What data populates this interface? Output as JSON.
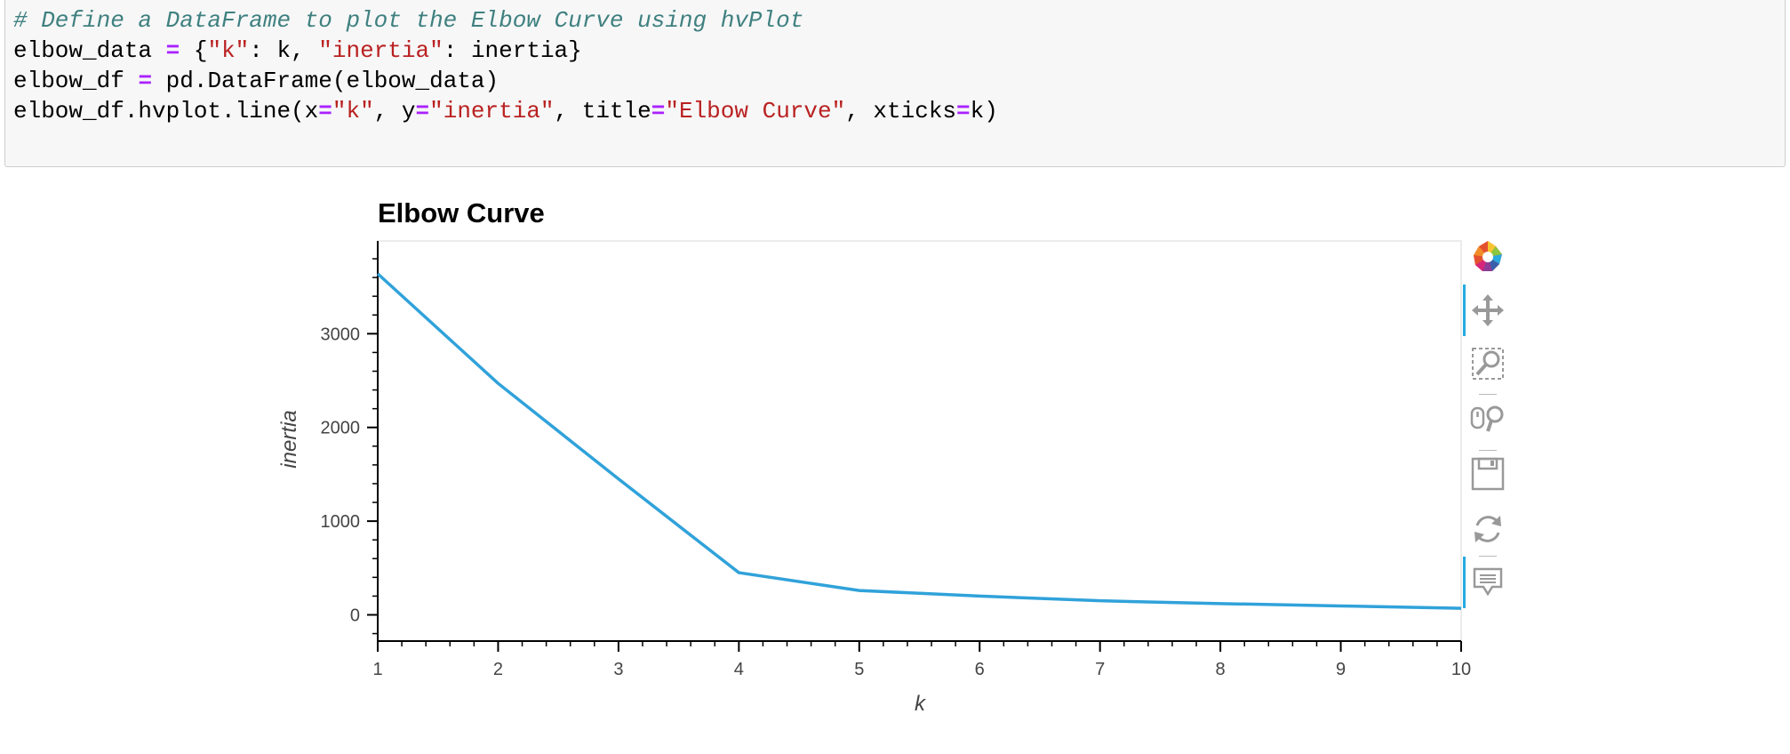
{
  "code": {
    "lines": [
      [
        {
          "t": "# Define a DataFrame to plot the Elbow Curve using hvPlot",
          "c": "comment"
        }
      ],
      [
        {
          "t": "elbow_data ",
          "c": "plain"
        },
        {
          "t": "=",
          "c": "op"
        },
        {
          "t": " {",
          "c": "plain"
        },
        {
          "t": "\"k\"",
          "c": "str"
        },
        {
          "t": ": k, ",
          "c": "plain"
        },
        {
          "t": "\"inertia\"",
          "c": "str"
        },
        {
          "t": ": inertia}",
          "c": "plain"
        }
      ],
      [
        {
          "t": "elbow_df ",
          "c": "plain"
        },
        {
          "t": "=",
          "c": "op"
        },
        {
          "t": " pd.DataFrame(elbow_data)",
          "c": "plain"
        }
      ],
      [
        {
          "t": "elbow_df.hvplot.line(x",
          "c": "plain"
        },
        {
          "t": "=",
          "c": "op"
        },
        {
          "t": "\"k\"",
          "c": "str"
        },
        {
          "t": ", y",
          "c": "plain"
        },
        {
          "t": "=",
          "c": "op"
        },
        {
          "t": "\"inertia\"",
          "c": "str"
        },
        {
          "t": ", title",
          "c": "plain"
        },
        {
          "t": "=",
          "c": "op"
        },
        {
          "t": "\"Elbow Curve\"",
          "c": "str"
        },
        {
          "t": ", xticks",
          "c": "plain"
        },
        {
          "t": "=",
          "c": "op"
        },
        {
          "t": "k)",
          "c": "plain"
        }
      ]
    ]
  },
  "chart_data": {
    "type": "line",
    "title": "Elbow Curve",
    "xlabel": "k",
    "ylabel": "inertia",
    "x": [
      1,
      2,
      3,
      4,
      5,
      6,
      7,
      8,
      9,
      10
    ],
    "series": [
      {
        "values": [
          3640,
          2470,
          1450,
          450,
          260,
          200,
          150,
          120,
          95,
          70
        ],
        "color": "#30a2da"
      }
    ],
    "xticks": [
      1,
      2,
      3,
      4,
      5,
      6,
      7,
      8,
      9,
      10
    ],
    "yticks": [
      0,
      1000,
      2000,
      3000
    ],
    "xlim": [
      1,
      10
    ],
    "ylim": [
      -280,
      3990
    ],
    "grid": false,
    "legend": "none"
  },
  "toolbar": {
    "tools": [
      {
        "icon": "bokeh-logo-icon",
        "active": false
      },
      {
        "icon": "pan-icon",
        "active": true
      },
      {
        "icon": "box-zoom-icon",
        "active": false
      },
      {
        "icon": "wheel-zoom-icon",
        "active": false
      },
      {
        "icon": "save-icon",
        "active": false
      },
      {
        "icon": "reset-icon",
        "active": false
      },
      {
        "icon": "hover-icon",
        "active": true
      }
    ],
    "accent": "#26aae1"
  }
}
